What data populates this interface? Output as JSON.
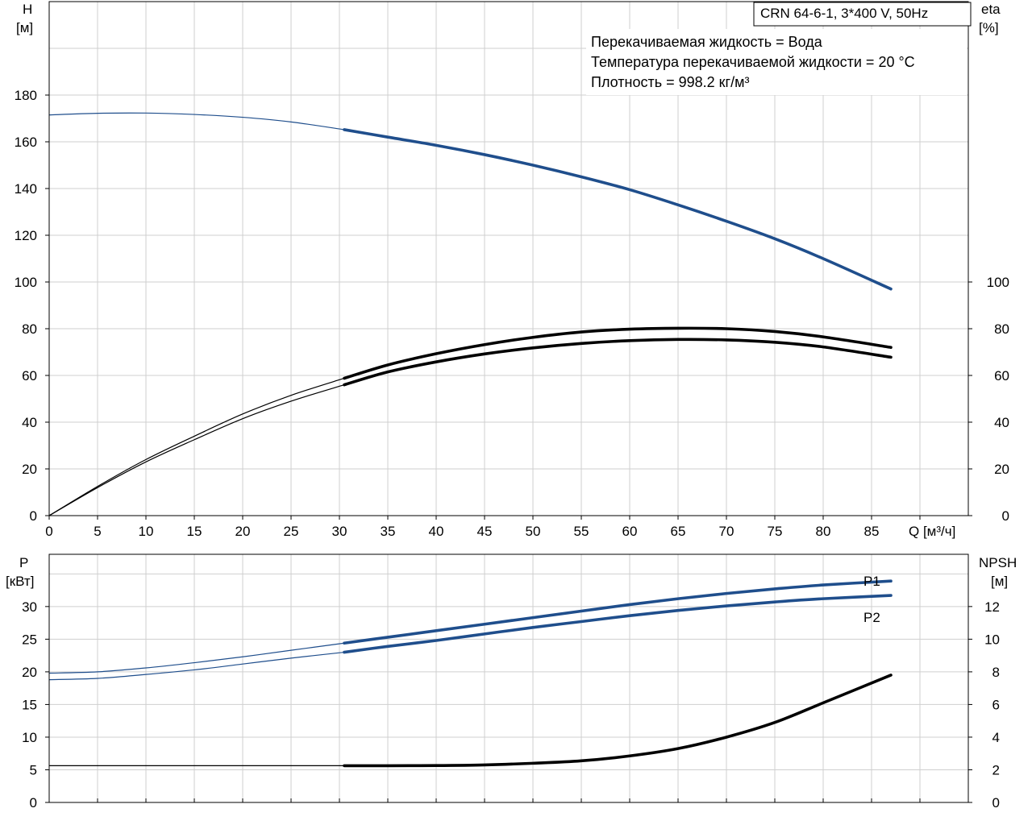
{
  "chart_data": [
    {
      "type": "line",
      "title": "CRN 64-6-1, 3*400 V, 50Hz",
      "annotations": [
        "Перекачиваемая жидкость = Вода",
        "Температура перекачиваемой жидкости = 20 °C",
        "Плотность = 998.2 кг/м³"
      ],
      "xlabel": "Q [м³/ч]",
      "ylabel_left": [
        "H",
        "[м]"
      ],
      "ylabel_right": [
        "eta",
        "[%]"
      ],
      "xlim": [
        0,
        95
      ],
      "ylim_left": [
        0,
        220
      ],
      "ylim_right": [
        0,
        220
      ],
      "x_ticks": [
        0,
        5,
        10,
        15,
        20,
        25,
        30,
        35,
        40,
        45,
        50,
        55,
        60,
        65,
        70,
        75,
        80,
        85
      ],
      "y_ticks_left": [
        0,
        20,
        40,
        60,
        80,
        100,
        120,
        140,
        160,
        180
      ],
      "y_ticks_right": [
        0,
        20,
        40,
        60,
        80,
        100
      ],
      "duty_range": [
        30.5,
        87
      ],
      "grid": true,
      "series": [
        {
          "axis": "left",
          "color": "#1f4e8c",
          "x": [
            0,
            5,
            10,
            15,
            20,
            25,
            30.5,
            35,
            40,
            45,
            50,
            55,
            60,
            65,
            70,
            75,
            80,
            87
          ],
          "values": [
            171.5,
            172.2,
            172.3,
            171.7,
            170.5,
            168.5,
            165.2,
            162.0,
            158.5,
            154.5,
            150.0,
            145.0,
            139.5,
            133.0,
            126.0,
            118.5,
            110.0,
            97.0
          ]
        },
        {
          "axis": "right",
          "color": "#000000",
          "x": [
            0,
            5,
            10,
            15,
            20,
            25,
            30.5,
            35,
            40,
            45,
            50,
            55,
            60,
            65,
            70,
            75,
            80,
            87
          ],
          "values": [
            0,
            12.5,
            24,
            34,
            43.5,
            51.5,
            58.8,
            64.5,
            69.3,
            73.2,
            76.3,
            78.6,
            79.8,
            80.2,
            80.0,
            78.8,
            76.5,
            72.0
          ]
        },
        {
          "axis": "right",
          "color": "#000000",
          "x": [
            0,
            5,
            10,
            15,
            20,
            25,
            30.5,
            35,
            40,
            45,
            50,
            55,
            60,
            65,
            70,
            75,
            80,
            87
          ],
          "values": [
            0,
            12,
            23,
            32.5,
            41.5,
            49.0,
            56.0,
            61.5,
            65.8,
            69.2,
            71.8,
            73.7,
            74.9,
            75.4,
            75.2,
            74.2,
            72.2,
            67.8
          ]
        }
      ]
    },
    {
      "type": "line",
      "xlim": [
        0,
        95
      ],
      "ylabel_left": [
        "P",
        "[кВт]"
      ],
      "ylabel_right": [
        "NPSH",
        "[м]"
      ],
      "ylim_left": [
        0,
        38
      ],
      "ylim_right": [
        0,
        15.2
      ],
      "y_ticks_left": [
        0,
        5,
        10,
        15,
        20,
        25,
        30
      ],
      "y_ticks_right": [
        0,
        2,
        4,
        6,
        8,
        10,
        12
      ],
      "duty_range": [
        30.5,
        87
      ],
      "grid": true,
      "series": [
        {
          "name": "P1",
          "axis": "left",
          "color": "#1f4e8c",
          "x": [
            0,
            5,
            10,
            15,
            20,
            25,
            30.5,
            35,
            40,
            45,
            50,
            55,
            60,
            65,
            70,
            75,
            80,
            87
          ],
          "values": [
            19.8,
            20.0,
            20.6,
            21.4,
            22.3,
            23.3,
            24.4,
            25.3,
            26.3,
            27.3,
            28.3,
            29.3,
            30.3,
            31.2,
            32.0,
            32.7,
            33.3,
            33.9
          ]
        },
        {
          "name": "P2",
          "axis": "left",
          "color": "#1f4e8c",
          "x": [
            0,
            5,
            10,
            15,
            20,
            25,
            30.5,
            35,
            40,
            45,
            50,
            55,
            60,
            65,
            70,
            75,
            80,
            87
          ],
          "values": [
            18.8,
            19.0,
            19.6,
            20.3,
            21.2,
            22.1,
            23.0,
            23.9,
            24.8,
            25.8,
            26.8,
            27.7,
            28.6,
            29.4,
            30.1,
            30.7,
            31.2,
            31.7
          ]
        },
        {
          "axis": "right",
          "color": "#000000",
          "x": [
            0,
            10,
            20,
            30.5,
            35,
            40,
            45,
            50,
            55,
            60,
            65,
            70,
            75,
            80,
            87
          ],
          "values": [
            2.25,
            2.25,
            2.25,
            2.25,
            2.25,
            2.26,
            2.3,
            2.4,
            2.55,
            2.85,
            3.3,
            4.0,
            4.9,
            6.1,
            7.8
          ]
        }
      ]
    }
  ]
}
